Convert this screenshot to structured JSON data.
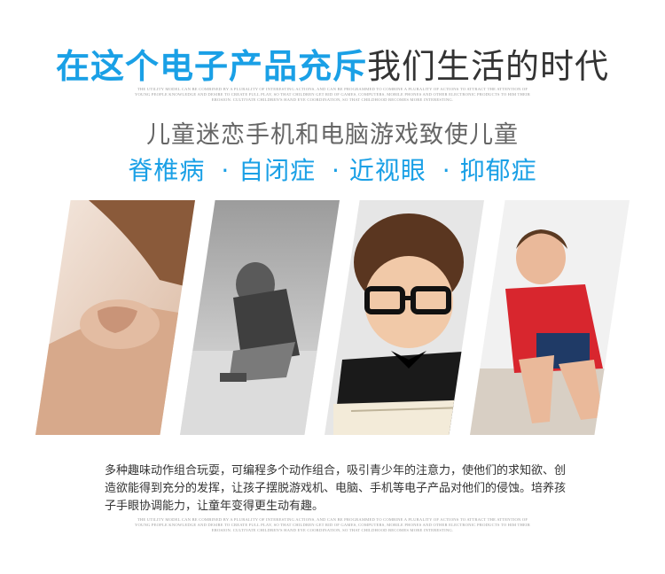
{
  "headline": {
    "blue": "在这个电子产品充斥",
    "dark": "我们生活的时代"
  },
  "fineprint_top": "THE UTILITY MODEL CAN BE COMBINED BY A PLURALITY OF INTERESTING ACTIONS, AND CAN BE PROGRAMMED TO COMBINE A PLURALITY OF ACTIONS TO ATTRACT THE ATTENTION OF YOUNG PEOPLE KNOWLEDGE AND DESIRE TO CREATE FULL PLAY, SO THAT CHILDREN GET RID OF GAMES, COMPUTERS, MOBILE PHONES AND OTHER ELECTRONIC PRODUCTS TO HIM THEIR EROSION. CULTIVATE CHILDREN'S HAND EYE COORDINATION, SO THAT CHILDHOOD BECOMES MORE INTERESTING.",
  "subhead": "儿童迷恋手机和电脑游戏致使儿童",
  "symptoms": [
    "脊椎病",
    "· 自闭症",
    "· 近视眼",
    "· 抑郁症"
  ],
  "description": "多种趣味动作组合玩耍，可编程多个动作组合，吸引青少年的注意力，使他们的求知欲、创造欲能得到充分的发挥，让孩子摆脱游戏机、电脑、手机等电子产品对他们的侵蚀。培养孩子手眼协调能力，让童年变得更生动有趣。",
  "fineprint_bottom": "THE UTILITY MODEL CAN BE COMBINED BY A PLURALITY OF INTERESTING ACTIONS, AND CAN BE PROGRAMMED TO COMBINE A PLURALITY OF ACTIONS TO ATTRACT THE ATTENTION OF YOUNG PEOPLE KNOWLEDGE AND DESIRE TO CREATE FULL PLAY, SO THAT CHILDREN GET RID OF GAMES, COMPUTERS, MOBILE PHONES AND OTHER ELECTRONIC PRODUCTS TO HIM THEIR EROSION. CULTIVATE CHILDREN'S HAND EYE COORDINATION, SO THAT CHILDHOOD BECOMES MORE INTERESTING.",
  "colors": {
    "accent_blue": "#1aa0e6",
    "headline_dark": "#333333",
    "subhead_gray": "#666666"
  }
}
